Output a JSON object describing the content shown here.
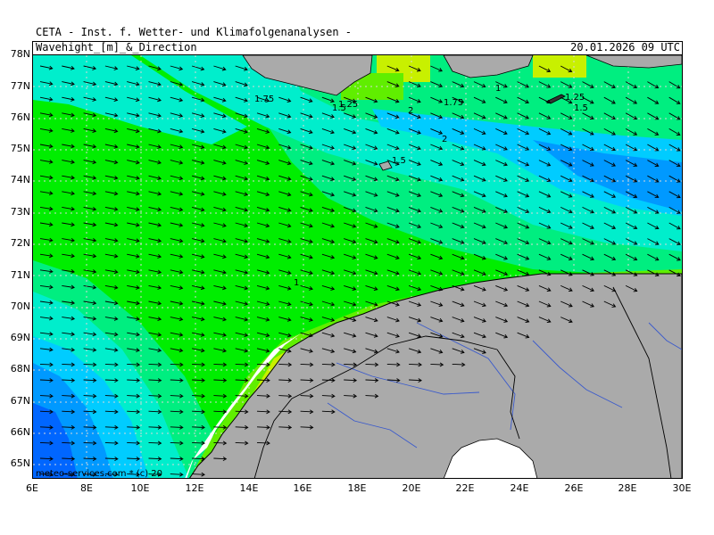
{
  "header": {
    "title": "CETA - Inst. f. Wetter- und Klimafolgenanalysen -",
    "subtitle": "Wavehight_[m]_&_Direction",
    "datetime": "20.01.2026 09 UTC"
  },
  "axes": {
    "lat_labels": [
      "78N",
      "77N",
      "76N",
      "75N",
      "74N",
      "73N",
      "72N",
      "71N",
      "70N",
      "69N",
      "68N",
      "67N",
      "66N",
      "65N"
    ],
    "lon_labels": [
      "6E",
      "8E",
      "10E",
      "12E",
      "14E",
      "16E",
      "18E",
      "20E",
      "22E",
      "24E",
      "26E",
      "28E",
      "30E"
    ],
    "lat_range": [
      65,
      78
    ],
    "lon_range": [
      6,
      30
    ]
  },
  "contour_labels": [
    "1.75",
    "1.5",
    "1.25",
    "2",
    "1.75",
    "1",
    "1.25",
    "1.5",
    "2",
    "1.5",
    "1"
  ],
  "credit": "meteo-services.com * (c) 20",
  "colors": {
    "land": "#aaaaaa",
    "coast": "#000000",
    "river": "#3a5acc",
    "grid": "#c0c0c0",
    "wave_0_75": "#c8f000",
    "wave_1_0": "#60ee00",
    "wave_1_25": "#00ee00",
    "wave_1_5": "#00ee80",
    "wave_1_75": "#00eecc",
    "wave_2_0": "#00ccff",
    "wave_2_25": "#0099ff",
    "wave_2_5": "#0066ff"
  }
}
